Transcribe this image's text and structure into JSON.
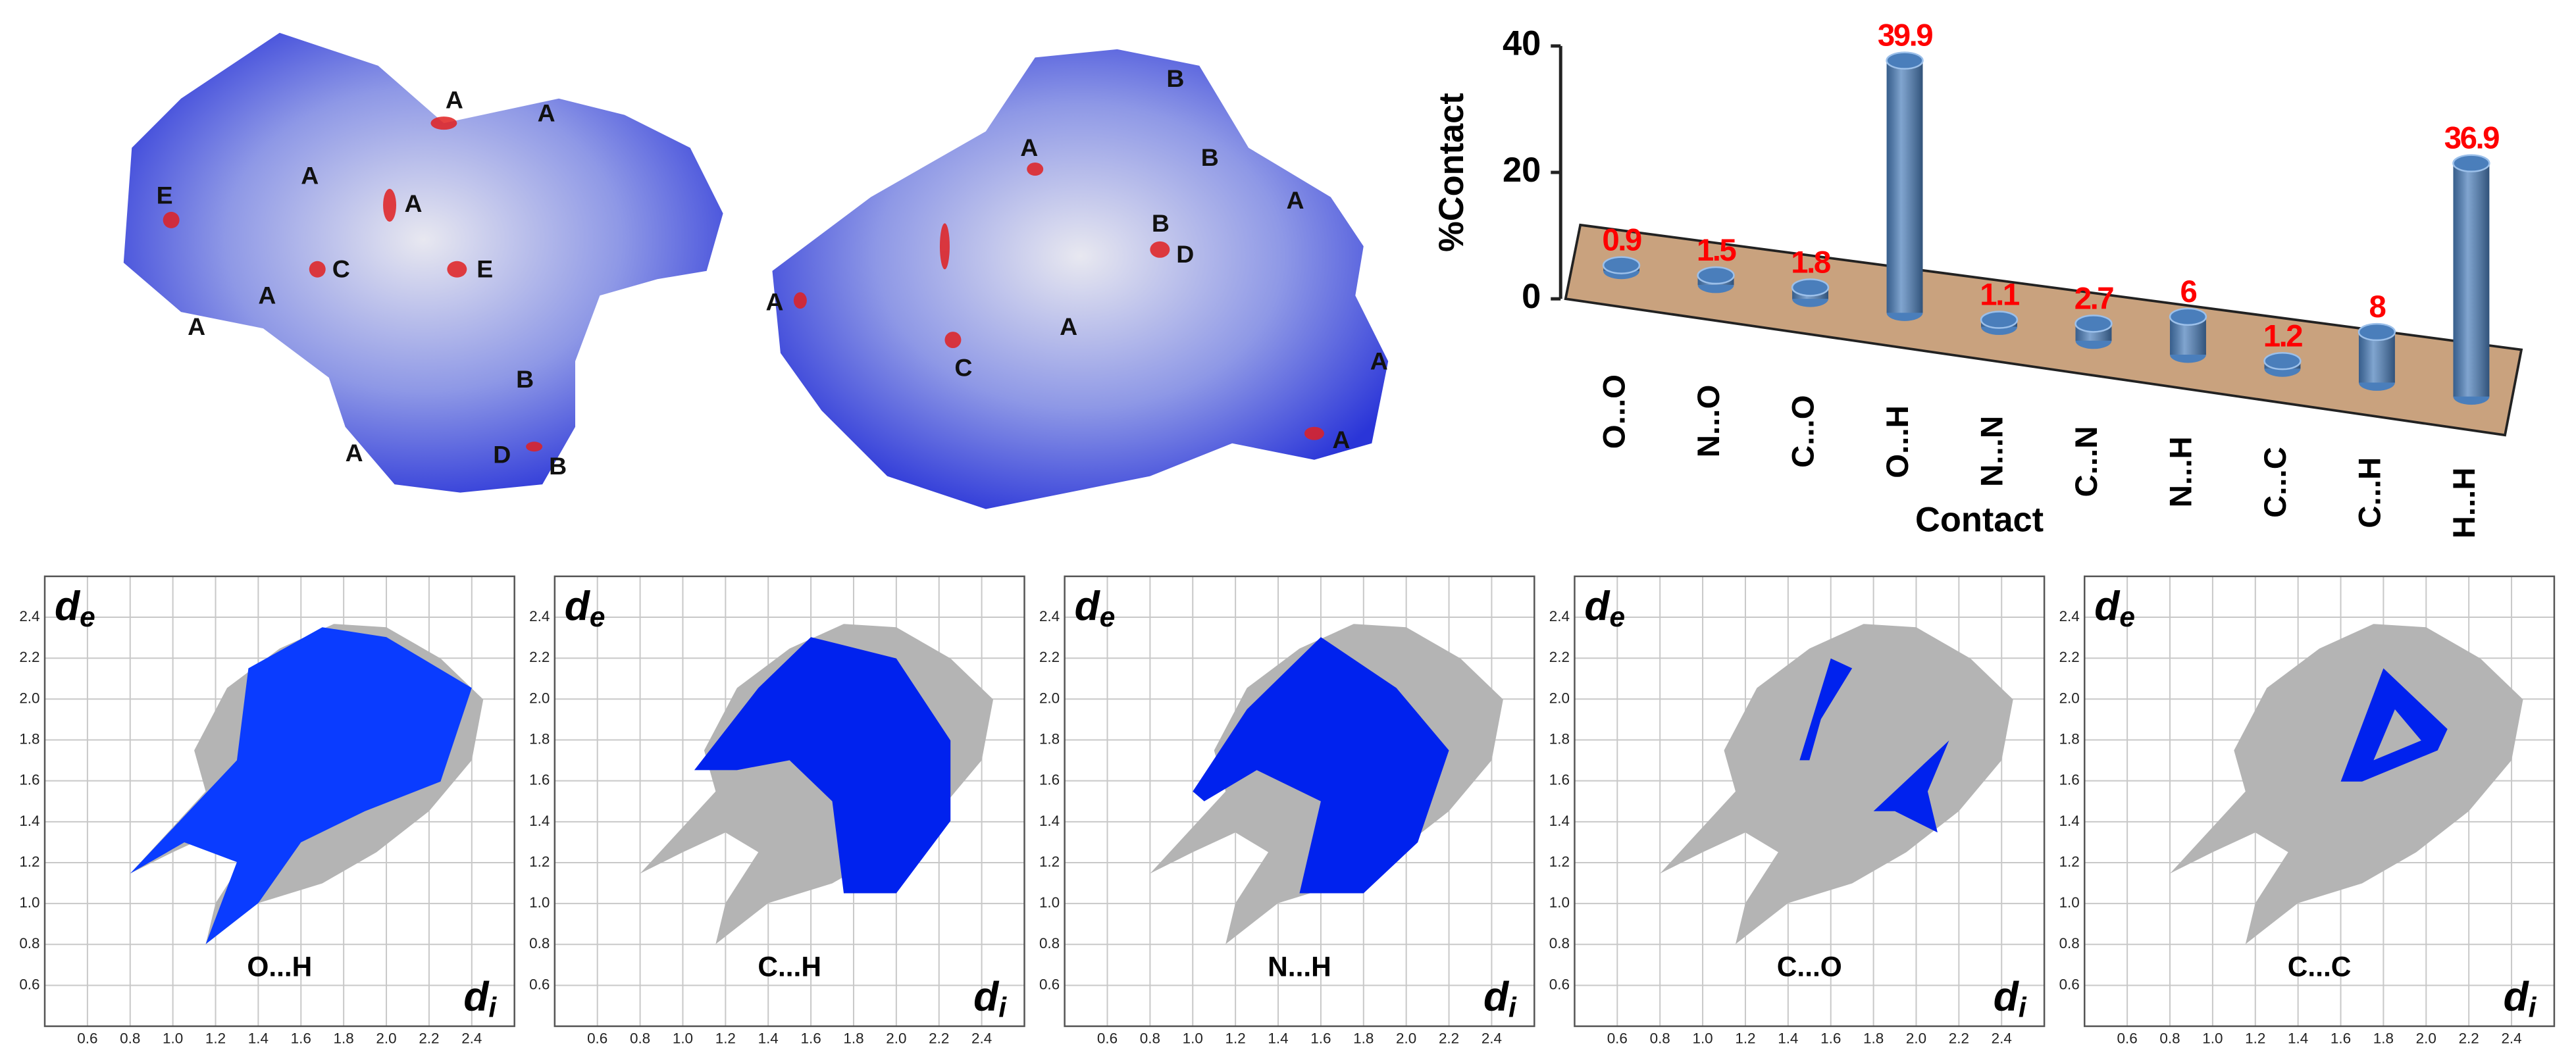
{
  "surfaces": [
    {
      "labels": [
        "A",
        "A",
        "A",
        "A",
        "E",
        "C",
        "E",
        "A",
        "A",
        "B",
        "A",
        "D",
        "B"
      ]
    },
    {
      "labels": [
        "B",
        "A",
        "B",
        "A",
        "B",
        "D",
        "A",
        "A",
        "C",
        "A",
        "A"
      ]
    }
  ],
  "chart_data": [
    {
      "type": "bar",
      "ylabel": "%Contact",
      "xlabel": "Contact",
      "categories": [
        "O...O",
        "N...O",
        "C...O",
        "O...H",
        "N...N",
        "C...N",
        "N...H",
        "C...C",
        "C...H",
        "H...H"
      ],
      "values": [
        0.9,
        1.5,
        1.8,
        39.9,
        1.1,
        2.7,
        6,
        1.2,
        8,
        36.9
      ],
      "ylim": [
        0,
        40
      ],
      "yticks": [
        0,
        20,
        40
      ],
      "color": "#4a7ebb",
      "label_color": "#ff0000",
      "platform_color": "#c9a27e"
    },
    {
      "type": "scatter",
      "title": "O...H",
      "xlabel": "d",
      "xlabel_sub": "i",
      "ylabel": "d",
      "ylabel_sub": "e",
      "xlim": [
        0.4,
        2.6
      ],
      "ylim": [
        0.4,
        2.6
      ],
      "xticks": [
        0.6,
        0.8,
        {
          "value": 1,
          "label": "1.0"
        },
        1.2,
        1.4,
        1.6,
        1.8,
        {
          "value": 2,
          "label": "2.0"
        },
        2.2,
        2.4
      ],
      "yticks": [
        0.6,
        0.8,
        {
          "value": 1,
          "label": "1.0"
        },
        1.2,
        1.4,
        1.6,
        1.8,
        {
          "value": 2,
          "label": "2.0"
        },
        2.2,
        2.4
      ],
      "grid": true,
      "color": "#0a3cff"
    },
    {
      "type": "scatter",
      "title": "C...H",
      "xlabel": "d",
      "xlabel_sub": "i",
      "ylabel": "d",
      "ylabel_sub": "e",
      "xlim": [
        0.4,
        2.6
      ],
      "ylim": [
        0.4,
        2.6
      ],
      "xticks": [
        0.6,
        0.8,
        {
          "value": 1,
          "label": "1.0"
        },
        1.2,
        1.4,
        1.6,
        1.8,
        {
          "value": 2,
          "label": "2.0"
        },
        2.2,
        2.4
      ],
      "yticks": [
        0.6,
        0.8,
        {
          "value": 1,
          "label": "1.0"
        },
        1.2,
        1.4,
        1.6,
        1.8,
        {
          "value": 2,
          "label": "2.0"
        },
        2.2,
        2.4
      ],
      "grid": true,
      "color": "#0022ee"
    },
    {
      "type": "scatter",
      "title": "N...H",
      "xlabel": "d",
      "xlabel_sub": "i",
      "ylabel": "d",
      "ylabel_sub": "e",
      "xlim": [
        0.4,
        2.6
      ],
      "ylim": [
        0.4,
        2.6
      ],
      "xticks": [
        0.6,
        0.8,
        {
          "value": 1,
          "label": "1.0"
        },
        1.2,
        1.4,
        1.6,
        1.8,
        {
          "value": 2,
          "label": "2.0"
        },
        2.2,
        2.4
      ],
      "yticks": [
        0.6,
        0.8,
        {
          "value": 1,
          "label": "1.0"
        },
        1.2,
        1.4,
        1.6,
        1.8,
        {
          "value": 2,
          "label": "2.0"
        },
        2.2,
        2.4
      ],
      "grid": true,
      "color": "#0022ee"
    },
    {
      "type": "scatter",
      "title": "C...O",
      "xlabel": "d",
      "xlabel_sub": "i",
      "ylabel": "d",
      "ylabel_sub": "e",
      "xlim": [
        0.4,
        2.6
      ],
      "ylim": [
        0.4,
        2.6
      ],
      "xticks": [
        0.6,
        0.8,
        {
          "value": 1,
          "label": "1.0"
        },
        1.2,
        1.4,
        1.6,
        1.8,
        {
          "value": 2,
          "label": "2.0"
        },
        2.2,
        2.4
      ],
      "yticks": [
        0.6,
        0.8,
        {
          "value": 1,
          "label": "1.0"
        },
        1.2,
        1.4,
        1.6,
        1.8,
        {
          "value": 2,
          "label": "2.0"
        },
        2.2,
        2.4
      ],
      "grid": true,
      "color": "#0022ee"
    },
    {
      "type": "scatter",
      "title": "C...C",
      "xlabel": "d",
      "xlabel_sub": "i",
      "ylabel": "d",
      "ylabel_sub": "e",
      "xlim": [
        0.4,
        2.6
      ],
      "ylim": [
        0.4,
        2.6
      ],
      "xticks": [
        0.6,
        0.8,
        {
          "value": 1,
          "label": "1.0"
        },
        1.2,
        1.4,
        1.6,
        1.8,
        {
          "value": 2,
          "label": "2.0"
        },
        2.2,
        2.4
      ],
      "yticks": [
        0.6,
        0.8,
        {
          "value": 1,
          "label": "1.0"
        },
        1.2,
        1.4,
        1.6,
        1.8,
        {
          "value": 2,
          "label": "2.0"
        },
        2.2,
        2.4
      ],
      "grid": true,
      "color": "#0022ee"
    }
  ]
}
